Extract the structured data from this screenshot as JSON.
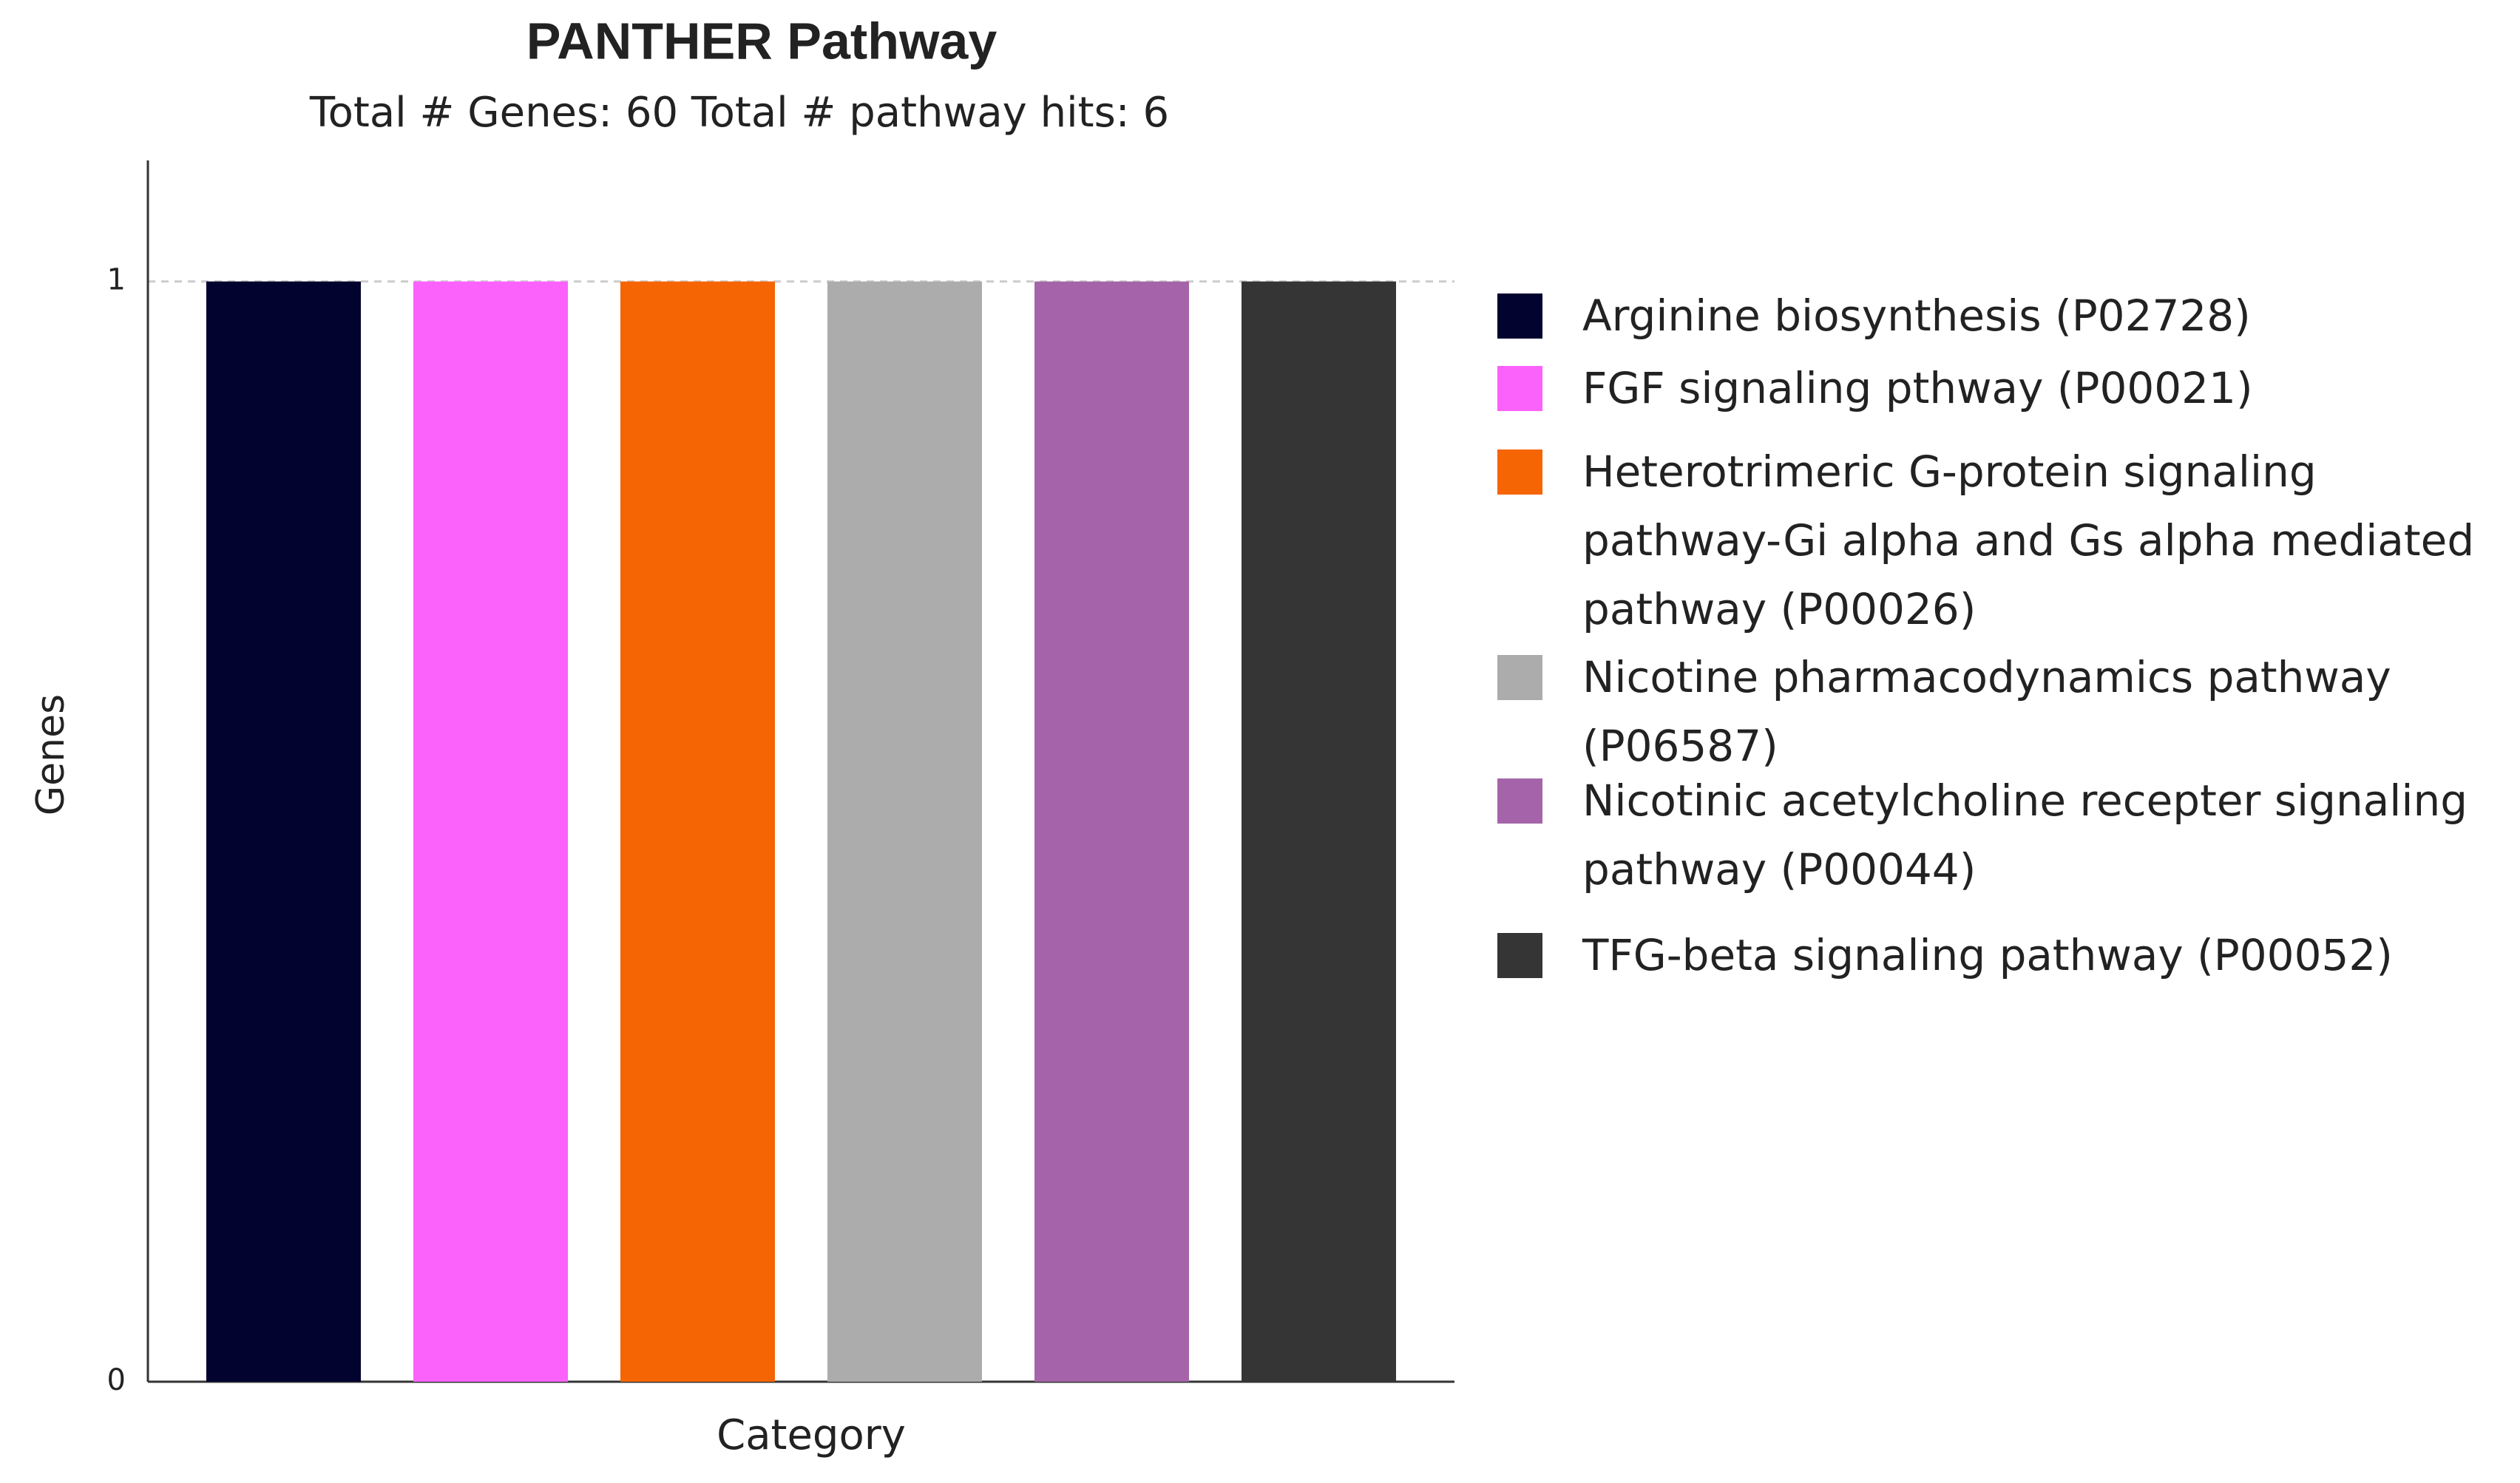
{
  "chart_data": {
    "type": "bar",
    "title": "PANTHER Pathway",
    "subtitle": "Total # Genes: 60 Total # pathway hits: 6",
    "x_label": "Category",
    "y_label": "Genes",
    "categories": [
      null
    ],
    "series": [
      {
        "name": "Arginine biosynthesis (P02728)",
        "color": "#02032e",
        "values": [
          1
        ]
      },
      {
        "name": "FGF signaling pthway (P00021)",
        "color": "#fb62fb",
        "values": [
          1
        ]
      },
      {
        "name": "Heterotrimeric G-protein signaling pathway-Gi alpha and Gs alpha mediated pathway (P00026)",
        "color": "#f56504",
        "values": [
          1
        ]
      },
      {
        "name": "Nicotine pharmacodynamics pathway (P06587)",
        "color": "#acacac",
        "values": [
          1
        ]
      },
      {
        "name": "Nicotinic acetylcholine recepter signaling pathway (P00044)",
        "color": "#a564a9",
        "values": [
          1
        ]
      },
      {
        "name": "TFG-beta signaling pathway (P00052)",
        "color": "#353535",
        "values": [
          1
        ]
      }
    ],
    "ylim": [
      0,
      1.11
    ],
    "yticks": [
      0,
      1
    ],
    "grid": true,
    "legend": "right"
  }
}
